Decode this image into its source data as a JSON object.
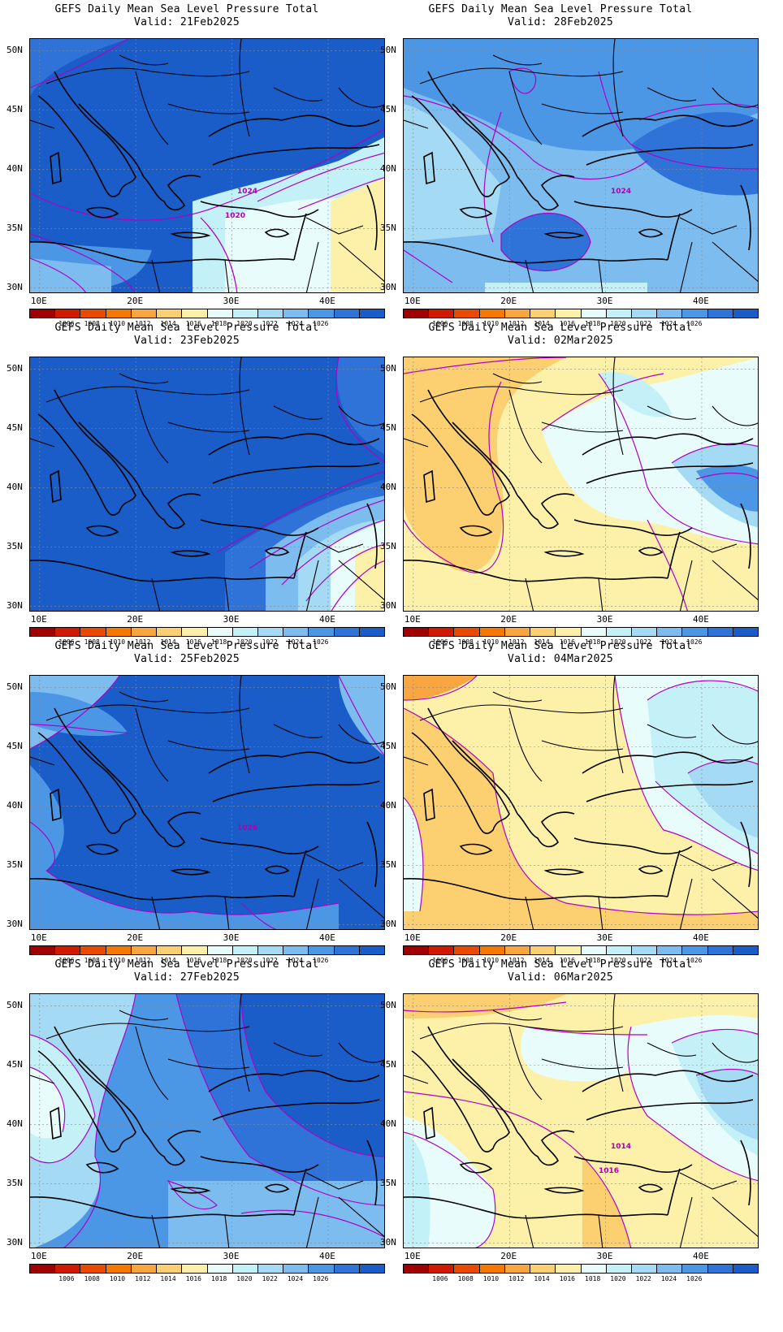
{
  "panels": [
    {
      "id": "p1",
      "line1": "GEFS Daily Mean Sea Level Pressure Total",
      "line2": "Valid: 21Feb2025",
      "col": 0,
      "row": 0,
      "scheme": "blue-high",
      "contour_labels": [
        "1024",
        "1020"
      ]
    },
    {
      "id": "p2",
      "line1": "GEFS Daily Mean Sea Level Pressure Total",
      "line2": "Valid: 28Feb2025",
      "col": 1,
      "row": 0,
      "scheme": "blue-mixed",
      "contour_labels": [
        "1024"
      ]
    },
    {
      "id": "p3",
      "line1": "GEFS Daily Mean Sea Level Pressure Total",
      "line2": "Valid: 23Feb2025",
      "col": 0,
      "row": 1,
      "scheme": "blue-high2",
      "contour_labels": []
    },
    {
      "id": "p4",
      "line1": "GEFS Daily Mean Sea Level Pressure Total",
      "line2": "Valid: 02Mar2025",
      "col": 1,
      "row": 1,
      "scheme": "yellow",
      "contour_labels": []
    },
    {
      "id": "p5",
      "line1": "GEFS Daily Mean Sea Level Pressure Total",
      "line2": "Valid: 25Feb2025",
      "col": 0,
      "row": 2,
      "scheme": "blue-high3",
      "contour_labels": [
        "1026"
      ]
    },
    {
      "id": "p6",
      "line1": "GEFS Daily Mean Sea Level Pressure Total",
      "line2": "Valid: 04Mar2025",
      "col": 1,
      "row": 2,
      "scheme": "yellow2",
      "contour_labels": []
    },
    {
      "id": "p7",
      "line1": "GEFS Daily Mean Sea Level Pressure Total",
      "line2": "Valid: 27Feb2025",
      "col": 0,
      "row": 3,
      "scheme": "blue-mid",
      "contour_labels": []
    },
    {
      "id": "p8",
      "line1": "GEFS Daily Mean Sea Level Pressure Total",
      "line2": "Valid: 06Mar2025",
      "col": 1,
      "row": 3,
      "scheme": "yellow3",
      "contour_labels": [
        "1014",
        "1016"
      ]
    }
  ],
  "lat_labels": [
    "50N",
    "45N",
    "40N",
    "35N",
    "30N"
  ],
  "lon_labels": [
    "10E",
    "20E",
    "30E",
    "40E"
  ],
  "colorbar": {
    "colors": [
      "#a00000",
      "#d01a00",
      "#e84a00",
      "#f57800",
      "#f9a640",
      "#fccf70",
      "#fdf0a8",
      "#e8fcfc",
      "#c4f0f8",
      "#a4daf4",
      "#7cbcee",
      "#4c96e6",
      "#2f72d8",
      "#1a5cc8"
    ],
    "labels": [
      "1006",
      "1008",
      "1010",
      "1012",
      "1014",
      "1016",
      "1018",
      "1020",
      "1022",
      "1024",
      "1026"
    ]
  }
}
